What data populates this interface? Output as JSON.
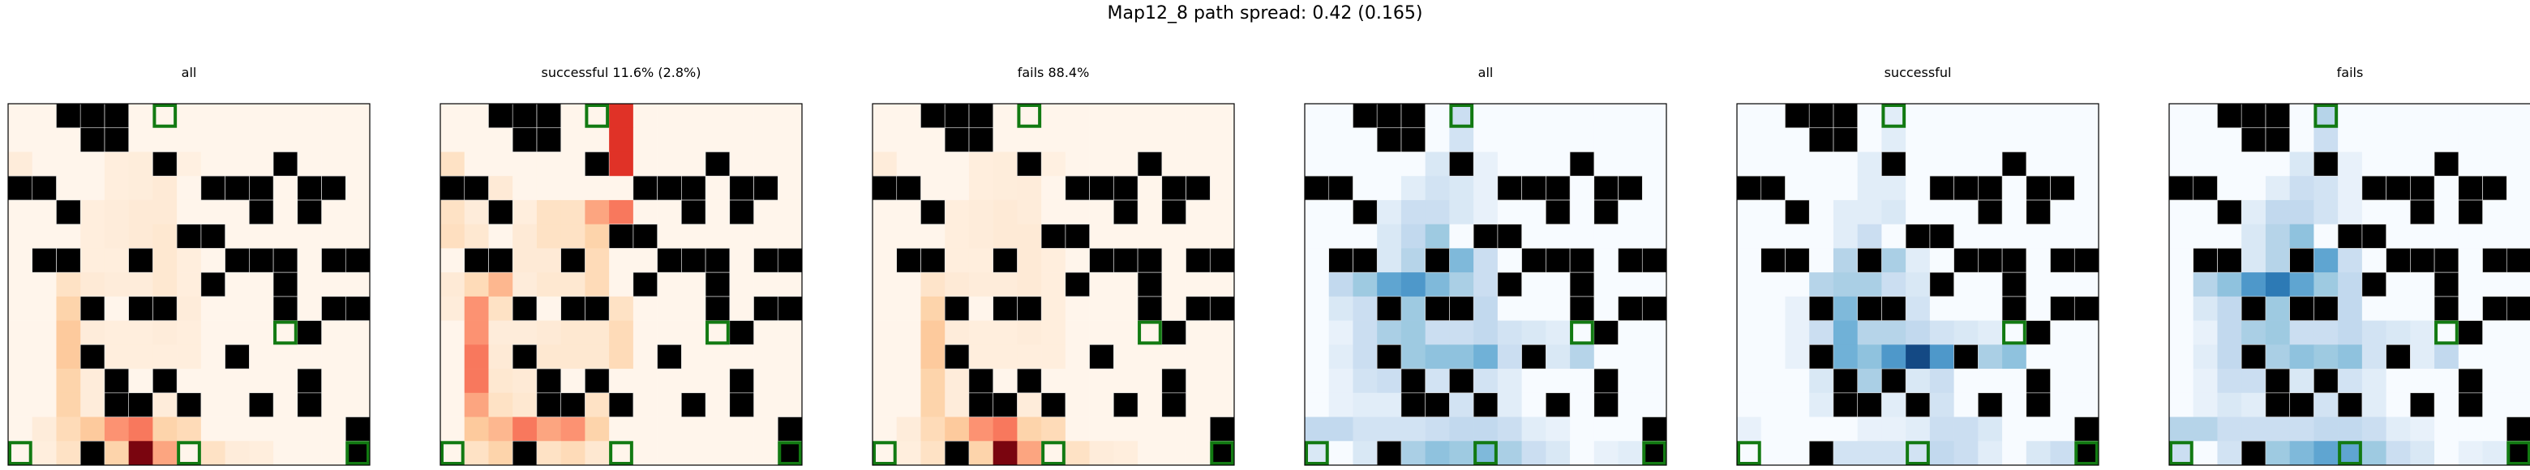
{
  "figure": {
    "title": "Map12_8 path spread: 0.42 (0.165)"
  },
  "chart_data": {
    "type": "heatmap",
    "grid_size": 15,
    "obstacles": [
      [
        0,
        2
      ],
      [
        0,
        3
      ],
      [
        0,
        4
      ],
      [
        1,
        3
      ],
      [
        1,
        4
      ],
      [
        2,
        6
      ],
      [
        2,
        11
      ],
      [
        3,
        0
      ],
      [
        3,
        1
      ],
      [
        3,
        8
      ],
      [
        3,
        9
      ],
      [
        3,
        10
      ],
      [
        3,
        12
      ],
      [
        3,
        13
      ],
      [
        4,
        2
      ],
      [
        4,
        10
      ],
      [
        4,
        12
      ],
      [
        5,
        7
      ],
      [
        5,
        8
      ],
      [
        6,
        1
      ],
      [
        6,
        2
      ],
      [
        6,
        5
      ],
      [
        6,
        9
      ],
      [
        6,
        10
      ],
      [
        6,
        11
      ],
      [
        6,
        13
      ],
      [
        6,
        14
      ],
      [
        7,
        8
      ],
      [
        7,
        11
      ],
      [
        8,
        3
      ],
      [
        8,
        5
      ],
      [
        8,
        6
      ],
      [
        8,
        11
      ],
      [
        8,
        13
      ],
      [
        8,
        14
      ],
      [
        9,
        12
      ],
      [
        10,
        3
      ],
      [
        10,
        9
      ],
      [
        11,
        4
      ],
      [
        11,
        6
      ],
      [
        11,
        12
      ],
      [
        12,
        4
      ],
      [
        12,
        5
      ],
      [
        12,
        7
      ],
      [
        12,
        10
      ],
      [
        12,
        12
      ],
      [
        13,
        14
      ],
      [
        14,
        3
      ],
      [
        14,
        14
      ]
    ],
    "goals": [
      [
        0,
        6
      ],
      [
        9,
        11
      ],
      [
        14,
        0
      ],
      [
        14,
        7
      ],
      [
        14,
        14
      ]
    ],
    "panels": [
      {
        "title": "all",
        "cmap": "reds",
        "values": {
          "2,0": 0.1,
          "2,4": 0.08,
          "2,5": 0.09,
          "2,7": 0.06,
          "3,4": 0.08,
          "3,5": 0.09,
          "3,6": 0.12,
          "4,3": 0.08,
          "4,4": 0.1,
          "4,5": 0.12,
          "4,6": 0.12,
          "5,3": 0.08,
          "5,4": 0.1,
          "5,5": 0.12,
          "5,6": 0.15,
          "6,3": 0.08,
          "6,4": 0.08,
          "6,6": 0.15,
          "6,7": 0.08,
          "7,2": 0.2,
          "7,3": 0.12,
          "7,4": 0.1,
          "7,5": 0.1,
          "7,6": 0.15,
          "7,7": 0.08,
          "8,2": 0.3,
          "8,7": 0.1,
          "9,2": 0.35,
          "9,3": 0.1,
          "9,4": 0.08,
          "9,5": 0.08,
          "9,6": 0.1,
          "9,7": 0.08,
          "10,2": 0.35,
          "10,4": 0.08,
          "10,5": 0.08,
          "10,6": 0.08,
          "10,7": 0.08,
          "11,2": 0.3,
          "11,3": 0.1,
          "12,2": 0.3,
          "12,3": 0.1,
          "12,6": 0.1,
          "13,1": 0.1,
          "13,2": 0.25,
          "13,3": 0.35,
          "13,4": 0.5,
          "13,5": 0.55,
          "13,6": 0.3,
          "13,7": 0.25,
          "14,1": 0.08,
          "14,2": 0.2,
          "14,4": 0.3,
          "14,5": 0.95,
          "14,6": 0.45,
          "14,8": 0.2,
          "14,9": 0.1,
          "14,10": 0.08
        }
      },
      {
        "title": "successful 11.6% (2.8%)",
        "cmap": "reds",
        "values": {
          "0,7": 0.7,
          "1,7": 0.7,
          "2,7": 0.7,
          "2,0": 0.2,
          "3,2": 0.12,
          "4,0": 0.2,
          "4,1": 0.1,
          "4,3": 0.08,
          "4,4": 0.2,
          "4,5": 0.2,
          "4,6": 0.45,
          "4,7": 0.55,
          "5,0": 0.22,
          "5,1": 0.15,
          "5,3": 0.12,
          "5,4": 0.2,
          "5,5": 0.2,
          "5,6": 0.3,
          "6,3": 0.12,
          "6,4": 0.12,
          "6,6": 0.25,
          "7,0": 0.12,
          "7,1": 0.25,
          "7,2": 0.4,
          "7,3": 0.1,
          "7,4": 0.15,
          "7,5": 0.15,
          "7,6": 0.25,
          "8,0": 0.1,
          "8,1": 0.5,
          "8,2": 0.2,
          "8,7": 0.2,
          "9,1": 0.5,
          "9,2": 0.1,
          "9,3": 0.1,
          "9,4": 0.12,
          "9,5": 0.15,
          "9,6": 0.15,
          "9,7": 0.25,
          "10,1": 0.55,
          "10,2": 0.12,
          "10,4": 0.15,
          "10,5": 0.15,
          "10,6": 0.15,
          "10,7": 0.25,
          "11,1": 0.55,
          "11,2": 0.15,
          "11,3": 0.12,
          "12,1": 0.45,
          "12,2": 0.2,
          "12,3": 0.15,
          "12,6": 0.2,
          "13,1": 0.35,
          "13,2": 0.4,
          "13,3": 0.55,
          "13,4": 0.45,
          "13,5": 0.5,
          "13,6": 0.3,
          "14,1": 0.2,
          "14,2": 0.3,
          "14,4": 0.2,
          "14,5": 0.25,
          "14,6": 0.15
        }
      },
      {
        "title": "fails 88.4%",
        "cmap": "reds",
        "values": {
          "2,0": 0.1,
          "2,4": 0.08,
          "2,5": 0.09,
          "2,7": 0.06,
          "3,4": 0.08,
          "3,5": 0.09,
          "3,6": 0.1,
          "4,3": 0.08,
          "4,4": 0.1,
          "4,5": 0.12,
          "4,6": 0.1,
          "5,3": 0.08,
          "5,4": 0.1,
          "5,5": 0.12,
          "5,6": 0.12,
          "6,3": 0.08,
          "6,4": 0.08,
          "6,6": 0.12,
          "6,7": 0.08,
          "7,2": 0.18,
          "7,3": 0.12,
          "7,4": 0.1,
          "7,5": 0.1,
          "7,6": 0.12,
          "7,7": 0.08,
          "8,2": 0.3,
          "8,7": 0.08,
          "9,2": 0.35,
          "9,3": 0.1,
          "9,4": 0.08,
          "9,5": 0.08,
          "9,6": 0.1,
          "9,7": 0.08,
          "10,2": 0.35,
          "10,4": 0.08,
          "10,5": 0.08,
          "10,6": 0.08,
          "10,7": 0.08,
          "11,2": 0.3,
          "11,3": 0.1,
          "12,2": 0.3,
          "12,3": 0.1,
          "12,6": 0.1,
          "13,1": 0.1,
          "13,2": 0.25,
          "13,3": 0.35,
          "13,4": 0.5,
          "13,5": 0.55,
          "13,6": 0.3,
          "13,7": 0.25,
          "14,1": 0.08,
          "14,2": 0.2,
          "14,4": 0.3,
          "14,5": 0.95,
          "14,6": 0.45,
          "14,8": 0.2,
          "14,9": 0.1,
          "14,10": 0.08
        }
      },
      {
        "title": "all",
        "cmap": "blues",
        "values": {
          "0,6": 0.3,
          "1,6": 0.25,
          "2,5": 0.2,
          "2,6": 0.2,
          "2,7": 0.1,
          "3,4": 0.15,
          "3,5": 0.25,
          "3,6": 0.2,
          "3,7": 0.1,
          "4,3": 0.15,
          "4,4": 0.3,
          "4,5": 0.3,
          "4,6": 0.2,
          "4,7": 0.1,
          "5,3": 0.2,
          "5,4": 0.35,
          "5,5": 0.5,
          "6,3": 0.2,
          "6,4": 0.4,
          "6,6": 0.6,
          "6,7": 0.3,
          "7,1": 0.35,
          "7,2": 0.5,
          "7,3": 0.7,
          "7,4": 0.75,
          "7,5": 0.6,
          "7,6": 0.45,
          "7,7": 0.3,
          "8,1": 0.2,
          "8,2": 0.3,
          "8,4": 0.5,
          "8,7": 0.35,
          "9,1": 0.1,
          "9,2": 0.3,
          "9,3": 0.45,
          "9,4": 0.5,
          "9,5": 0.3,
          "9,6": 0.3,
          "9,7": 0.35,
          "9,8": 0.25,
          "9,9": 0.2,
          "9,10": 0.15,
          "10,1": 0.15,
          "10,2": 0.3,
          "10,4": 0.5,
          "10,5": 0.55,
          "10,6": 0.55,
          "10,7": 0.65,
          "10,8": 0.3,
          "10,10": 0.2,
          "10,11": 0.4,
          "11,1": 0.1,
          "11,2": 0.25,
          "11,3": 0.3,
          "11,5": 0.25,
          "11,7": 0.25,
          "11,8": 0.15,
          "12,1": 0.1,
          "12,2": 0.15,
          "12,3": 0.15,
          "12,6": 0.25,
          "12,8": 0.15,
          "13,0": 0.35,
          "13,1": 0.35,
          "13,2": 0.25,
          "13,3": 0.25,
          "13,4": 0.25,
          "13,5": 0.3,
          "13,6": 0.35,
          "13,7": 0.35,
          "13,8": 0.3,
          "13,9": 0.15,
          "13,10": 0.1,
          "14,0": 0.2,
          "14,2": 0.2,
          "14,4": 0.45,
          "14,5": 0.55,
          "14,6": 0.5,
          "14,7": 0.6,
          "14,8": 0.45,
          "14,9": 0.3,
          "14,10": 0.2,
          "14,12": 0.1,
          "14,13": 0.15
        }
      },
      {
        "title": "successful",
        "cmap": "blues",
        "values": {
          "0,6": 0.15,
          "1,6": 0.15,
          "2,5": 0.15,
          "2,6": 0.15,
          "3,5": 0.15,
          "3,6": 0.15,
          "4,4": 0.15,
          "4,5": 0.15,
          "4,6": 0.2,
          "5,4": 0.15,
          "5,5": 0.3,
          "6,4": 0.4,
          "6,6": 0.45,
          "6,7": 0.15,
          "7,3": 0.4,
          "7,4": 0.45,
          "7,5": 0.45,
          "7,6": 0.3,
          "7,7": 0.2,
          "8,2": 0.1,
          "8,4": 0.6,
          "8,7": 0.25,
          "9,2": 0.1,
          "9,3": 0.3,
          "9,4": 0.65,
          "9,5": 0.4,
          "9,6": 0.4,
          "9,7": 0.35,
          "9,8": 0.25,
          "9,9": 0.2,
          "9,10": 0.15,
          "10,2": 0.1,
          "10,4": 0.65,
          "10,5": 0.55,
          "10,6": 0.75,
          "10,7": 0.95,
          "10,8": 0.75,
          "10,10": 0.45,
          "10,11": 0.55,
          "11,3": 0.2,
          "11,5": 0.45,
          "11,7": 0.2,
          "11,8": 0.3,
          "12,3": 0.15,
          "12,6": 0.15,
          "12,8": 0.25,
          "13,0": 0.1,
          "13,5": 0.1,
          "13,6": 0.1,
          "13,7": 0.15,
          "13,8": 0.3,
          "13,9": 0.3,
          "13,10": 0.2,
          "14,4": 0.25,
          "14,5": 0.25,
          "14,6": 0.25,
          "14,7": 0.25,
          "14,8": 0.35,
          "14,9": 0.3,
          "14,10": 0.15,
          "14,12": 0.2,
          "14,13": 0.3
        }
      },
      {
        "title": "fails",
        "cmap": "blues",
        "values": {
          "0,6": 0.4,
          "1,6": 0.3,
          "2,5": 0.2,
          "2,6": 0.25,
          "2,7": 0.1,
          "3,4": 0.15,
          "3,5": 0.3,
          "3,6": 0.25,
          "3,7": 0.1,
          "4,3": 0.15,
          "4,4": 0.35,
          "4,5": 0.35,
          "4,6": 0.25,
          "4,7": 0.1,
          "5,3": 0.2,
          "5,4": 0.4,
          "5,5": 0.55,
          "6,3": 0.2,
          "6,4": 0.4,
          "6,6": 0.7,
          "6,7": 0.3,
          "7,1": 0.4,
          "7,2": 0.55,
          "7,3": 0.75,
          "7,4": 0.85,
          "7,5": 0.7,
          "7,6": 0.5,
          "7,7": 0.35,
          "8,1": 0.2,
          "8,2": 0.35,
          "8,4": 0.5,
          "8,7": 0.35,
          "9,1": 0.1,
          "9,2": 0.35,
          "9,3": 0.45,
          "9,4": 0.5,
          "9,5": 0.3,
          "9,6": 0.3,
          "9,7": 0.35,
          "9,8": 0.25,
          "9,9": 0.2,
          "9,10": 0.15,
          "10,1": 0.15,
          "10,2": 0.35,
          "10,4": 0.45,
          "10,5": 0.55,
          "10,6": 0.5,
          "10,7": 0.55,
          "10,8": 0.25,
          "10,10": 0.15,
          "10,11": 0.35,
          "11,1": 0.1,
          "11,2": 0.3,
          "11,3": 0.3,
          "11,5": 0.2,
          "11,7": 0.25,
          "11,8": 0.15,
          "12,1": 0.1,
          "12,2": 0.2,
          "12,3": 0.15,
          "12,6": 0.25,
          "12,8": 0.15,
          "13,0": 0.4,
          "13,1": 0.4,
          "13,2": 0.3,
          "13,3": 0.3,
          "13,4": 0.3,
          "13,5": 0.3,
          "13,6": 0.35,
          "13,7": 0.35,
          "13,8": 0.3,
          "13,9": 0.15,
          "13,10": 0.1,
          "14,0": 0.3,
          "14,2": 0.25,
          "14,4": 0.5,
          "14,5": 0.6,
          "14,6": 0.7,
          "14,7": 0.7,
          "14,8": 0.5,
          "14,9": 0.3,
          "14,10": 0.2,
          "14,12": 0.1,
          "14,13": 0.15
        }
      }
    ]
  },
  "colors": {
    "obstacle": "#000000",
    "goal_outline": "#127a12",
    "frame": "#000000",
    "grid_line": "#dddddd",
    "reds_min": "#fff5eb",
    "blues_min": "#f7fbff"
  }
}
